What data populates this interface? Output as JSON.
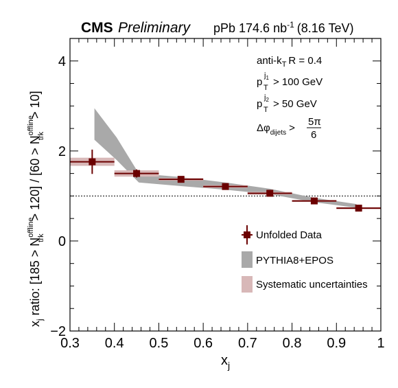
{
  "header": {
    "experiment": "CMS",
    "status": "Preliminary",
    "lumi_prefix": "pPb 174.6 nb",
    "lumi_sup": "-1",
    "lumi_suffix": "(8.16 TeV)"
  },
  "annotations": {
    "jet_main": "anti-k",
    "jet_sub": "T",
    "jet_rest": "R = 0.4",
    "pt1_main": "p",
    "pt1_sub": "T",
    "pt1_sup": "j",
    "pt1_supsub": "1",
    "pt1_rest": "> 100 GeV",
    "pt2_main": "p",
    "pt2_sub": "T",
    "pt2_sup": "j",
    "pt2_supsub": "2",
    "pt2_rest": "> 50 GeV",
    "dphi_main": "Δφ",
    "dphi_sub": "dijets",
    "dphi_gt": ">",
    "dphi_num": "5π",
    "dphi_den": "6"
  },
  "chart_data": {
    "type": "scatter",
    "xlabel_main": "x",
    "xlabel_sub": "j",
    "ylabel": {
      "p1": "x",
      "p1_sub": "j",
      "p2": " ratio: [185 > N",
      "n1_sup": "offline",
      "n1_sub": "trk",
      "p3": " > 120] / [60 > N",
      "n2_sup": "offline",
      "n2_sub": "trk",
      "p4": " > 10]"
    },
    "xlim": [
      0.3,
      1.0
    ],
    "ylim": [
      -2,
      4.5
    ],
    "xticks": [
      "0.3",
      "0.4",
      "0.5",
      "0.6",
      "0.7",
      "0.8",
      "0.9",
      "1"
    ],
    "yticks": [
      "−2",
      "0",
      "2",
      "4"
    ],
    "reference_line": 1.0,
    "series": [
      {
        "name": "Unfolded Data",
        "color": "#6b0000",
        "x": [
          0.35,
          0.45,
          0.55,
          0.65,
          0.75,
          0.85,
          0.95
        ],
        "y": [
          1.76,
          1.5,
          1.37,
          1.21,
          1.06,
          0.89,
          0.73
        ],
        "xerr": [
          0.05,
          0.05,
          0.05,
          0.05,
          0.05,
          0.05,
          0.05
        ],
        "yerr": [
          0.27,
          0.09,
          0.04,
          0.04,
          0.05,
          0.04,
          0.04
        ],
        "sys": [
          0.09,
          0.07,
          0.03,
          0.03,
          0.03,
          0.02,
          0.02
        ]
      }
    ],
    "model": {
      "name": "PYTHIA8+EPOS",
      "color": "#a9a9a9",
      "x": [
        0.355,
        0.405,
        0.455,
        0.55,
        0.65,
        0.75,
        0.85,
        0.945
      ],
      "lower": [
        2.25,
        1.8,
        1.3,
        1.22,
        1.14,
        1.04,
        0.86,
        0.74
      ],
      "upper": [
        2.95,
        2.3,
        1.5,
        1.42,
        1.3,
        1.16,
        0.96,
        0.82
      ]
    },
    "legend": {
      "placement": "bottom-right",
      "data_label": "Unfolded Data",
      "model_label": "PYTHIA8+EPOS",
      "sys_label": "Systematic uncertainties",
      "sys_color": "#d8b8b8"
    }
  }
}
